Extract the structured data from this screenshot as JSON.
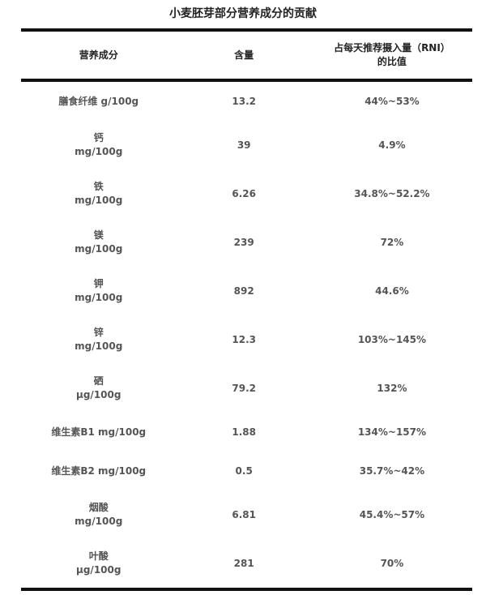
{
  "title": "小麦胚芽部分营养成分的贡献",
  "headers": [
    "营养成分",
    "含量",
    "占每天推荐摄入量（RNI）的比值"
  ],
  "rows": [
    {
      "name": "膳食纤维 g/100g",
      "unit": "",
      "amount": "13.2",
      "rni": "44%~53%"
    },
    {
      "name": "钙",
      "unit": "mg/100g",
      "amount": "39",
      "rni": "4.9%"
    },
    {
      "name": "铁",
      "unit": "mg/100g",
      "amount": "6.26",
      "rni": "34.8%~52.2%"
    },
    {
      "name": "镁",
      "unit": "mg/100g",
      "amount": "239",
      "rni": "72%"
    },
    {
      "name": "钾",
      "unit": "mg/100g",
      "amount": "892",
      "rni": "44.6%"
    },
    {
      "name": "锌",
      "unit": "mg/100g",
      "amount": "12.3",
      "rni": "103%~145%"
    },
    {
      "name": "硒",
      "unit": "μg/100g",
      "amount": "79.2",
      "rni": "132%"
    },
    {
      "name": "维生素B1 mg/100g",
      "unit": "",
      "amount": "1.88",
      "rni": "134%~157%"
    },
    {
      "name": "维生素B2 mg/100g",
      "unit": "",
      "amount": "0.5",
      "rni": "35.7%~42%"
    },
    {
      "name": "烟酸",
      "unit": "mg/100g",
      "amount": "6.81",
      "rni": "45.4%~57%"
    },
    {
      "name": "叶酸",
      "unit": "μg/100g",
      "amount": "281",
      "rni": "70%"
    }
  ]
}
